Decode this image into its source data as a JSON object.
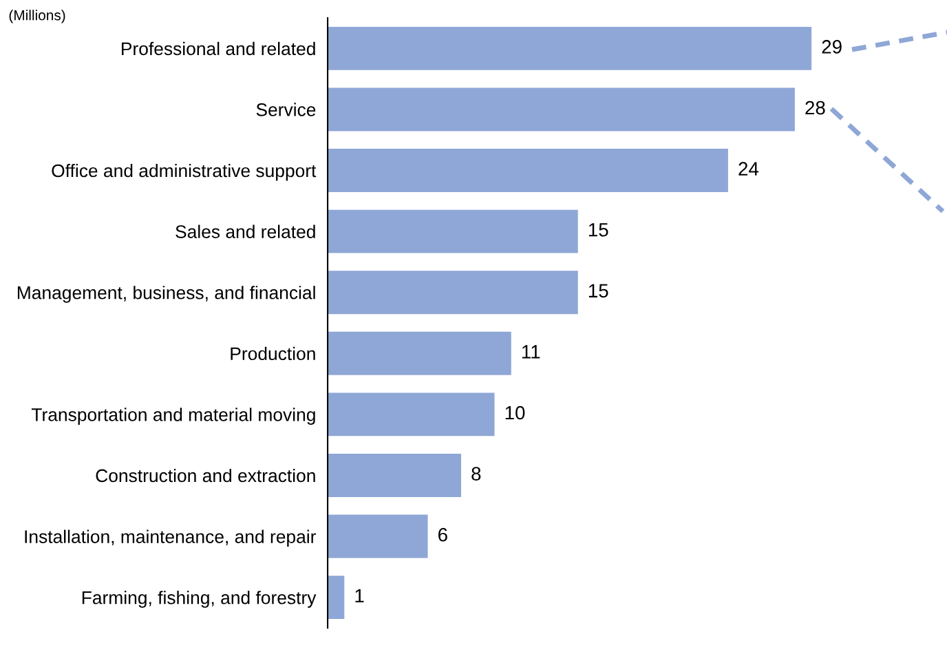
{
  "chart_data": {
    "type": "bar",
    "orientation": "horizontal",
    "categories": [
      "Professional and related",
      "Service",
      "Office and administrative support",
      "Sales and related",
      "Management, business, and financial",
      "Production",
      "Transportation and material moving",
      "Construction and extraction",
      "Installation, maintenance, and repair",
      "Farming, fishing, and forestry"
    ],
    "values": [
      29,
      28,
      24,
      15,
      15,
      11,
      10,
      8,
      6,
      1
    ],
    "color": "#8fa7d6",
    "tick_labels": "y",
    "data_labels": true,
    "grid": false,
    "legend": false,
    "annotations": [
      "(Millions)"
    ]
  }
}
